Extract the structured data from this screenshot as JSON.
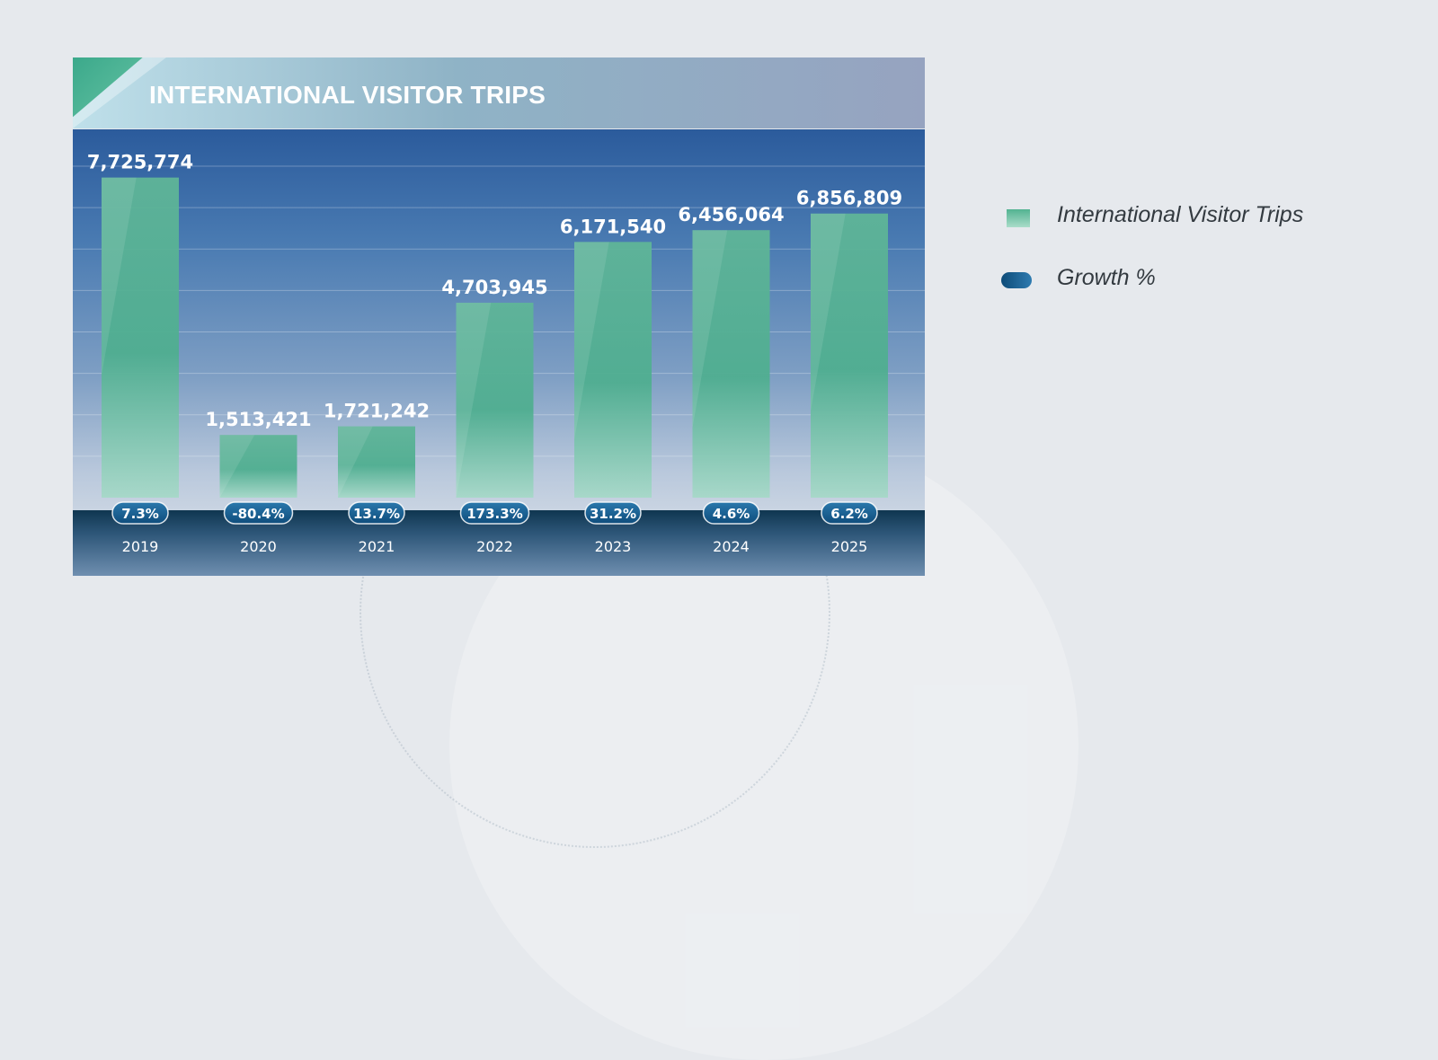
{
  "colors": {
    "bar_top": "#55b394",
    "bar_bottom": "#b6e0d3",
    "growth_pill": "#1b5d8c",
    "label_text": "#ffffff"
  },
  "legend": [
    {
      "label": "International Visitor Trips",
      "swatch": "bar"
    },
    {
      "label": "Growth %",
      "swatch": "pill"
    }
  ],
  "chart_data": {
    "type": "bar",
    "title": "INTERNATIONAL VISITOR TRIPS",
    "categories": [
      "2019",
      "2020",
      "2021",
      "2022",
      "2023",
      "2024",
      "2025"
    ],
    "series": [
      {
        "name": "International Visitor Trips",
        "values": [
          7725774,
          1513421,
          1721242,
          4703945,
          6171540,
          6456064,
          6856809
        ],
        "labels": [
          "7,725,774",
          "1,513,421",
          "1,721,242",
          "4,703,945",
          "6,171,540",
          "6,456,064",
          "6,856,809"
        ]
      },
      {
        "name": "Growth %",
        "values": [
          7.3,
          -80.4,
          13.7,
          173.3,
          31.2,
          4.6,
          6.2
        ],
        "labels": [
          "7.3%",
          "-80.4%",
          "13.7%",
          "173.3%",
          "31.2%",
          "4.6%",
          "6.2%"
        ]
      }
    ],
    "ylim": [
      0,
      8000000
    ],
    "grid": true,
    "legend_position": "right"
  }
}
